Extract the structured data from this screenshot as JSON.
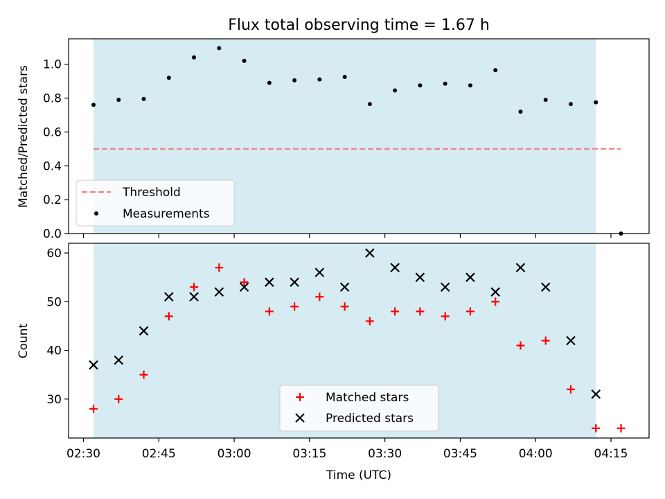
{
  "title": "Flux total observing time = 1.67 h",
  "colors": {
    "shade": "#add8e6",
    "threshold": "#f08080",
    "measurement": "#000000",
    "matched": "#ff0000",
    "predicted": "#000000"
  },
  "chart_data": [
    {
      "type": "scatter",
      "title": "Flux total observing time = 1.67 h",
      "xlabel": "",
      "ylabel": "Matched/Predicted stars",
      "ylim": [
        0,
        1.15
      ],
      "xlim": [
        "02:30",
        "04:17"
      ],
      "yticks": [
        0.0,
        0.2,
        0.4,
        0.6,
        0.8,
        1.0
      ],
      "ytick_labels": [
        "0.0",
        "0.2",
        "0.4",
        "0.6",
        "0.8",
        "1.0"
      ],
      "xticks": [
        "02:30",
        "02:45",
        "03:00",
        "03:15",
        "03:30",
        "03:45",
        "04:00",
        "04:15"
      ],
      "shaded_span": [
        "02:32",
        "04:12"
      ],
      "legend_position": "lower left",
      "series": [
        {
          "name": "Threshold",
          "kind": "dashed-line",
          "x": [
            "02:32",
            "04:17"
          ],
          "values": [
            0.5,
            0.5
          ]
        },
        {
          "name": "Measurements",
          "kind": "dot",
          "x": [
            "02:32",
            "02:37",
            "02:42",
            "02:47",
            "02:52",
            "02:57",
            "03:02",
            "03:07",
            "03:12",
            "03:17",
            "03:22",
            "03:27",
            "03:32",
            "03:37",
            "03:42",
            "03:47",
            "03:52",
            "03:57",
            "04:02",
            "04:07",
            "04:12",
            "04:17"
          ],
          "values": [
            0.76,
            0.79,
            0.795,
            0.92,
            1.04,
            1.095,
            1.02,
            0.89,
            0.905,
            0.91,
            0.925,
            0.765,
            0.845,
            0.875,
            0.885,
            0.875,
            0.965,
            0.72,
            0.79,
            0.765,
            0.775,
            0.0
          ]
        }
      ]
    },
    {
      "type": "scatter",
      "xlabel": "Time (UTC)",
      "ylabel": "Count",
      "ylim": [
        22,
        62
      ],
      "xlim": [
        "02:30",
        "04:17"
      ],
      "yticks": [
        30,
        40,
        50,
        60
      ],
      "ytick_labels": [
        "30",
        "40",
        "50",
        "60"
      ],
      "xticks": [
        "02:30",
        "02:45",
        "03:00",
        "03:15",
        "03:30",
        "03:45",
        "04:00",
        "04:15"
      ],
      "xtick_labels": [
        "02:30",
        "02:45",
        "03:00",
        "03:15",
        "03:30",
        "03:45",
        "04:00",
        "04:15"
      ],
      "shaded_span": [
        "02:32",
        "04:12"
      ],
      "legend_position": "lower center",
      "series": [
        {
          "name": "Matched stars",
          "kind": "plus",
          "x": [
            "02:32",
            "02:37",
            "02:42",
            "02:47",
            "02:52",
            "02:57",
            "03:02",
            "03:07",
            "03:12",
            "03:17",
            "03:22",
            "03:27",
            "03:32",
            "03:37",
            "03:42",
            "03:47",
            "03:52",
            "03:57",
            "04:02",
            "04:07",
            "04:12",
            "04:17"
          ],
          "values": [
            28,
            30,
            35,
            47,
            53,
            57,
            54,
            48,
            49,
            51,
            49,
            46,
            48,
            48,
            47,
            48,
            50,
            41,
            42,
            32,
            24,
            24
          ]
        },
        {
          "name": "Predicted stars",
          "kind": "x",
          "x": [
            "02:32",
            "02:37",
            "02:42",
            "02:47",
            "02:52",
            "02:57",
            "03:02",
            "03:07",
            "03:12",
            "03:17",
            "03:22",
            "03:27",
            "03:32",
            "03:37",
            "03:42",
            "03:47",
            "03:52",
            "03:57",
            "04:02",
            "04:07",
            "04:12"
          ],
          "values": [
            37,
            38,
            44,
            51,
            51,
            52,
            53,
            54,
            54,
            56,
            53,
            60,
            57,
            55,
            53,
            55,
            52,
            57,
            53,
            42,
            31
          ]
        }
      ]
    }
  ]
}
